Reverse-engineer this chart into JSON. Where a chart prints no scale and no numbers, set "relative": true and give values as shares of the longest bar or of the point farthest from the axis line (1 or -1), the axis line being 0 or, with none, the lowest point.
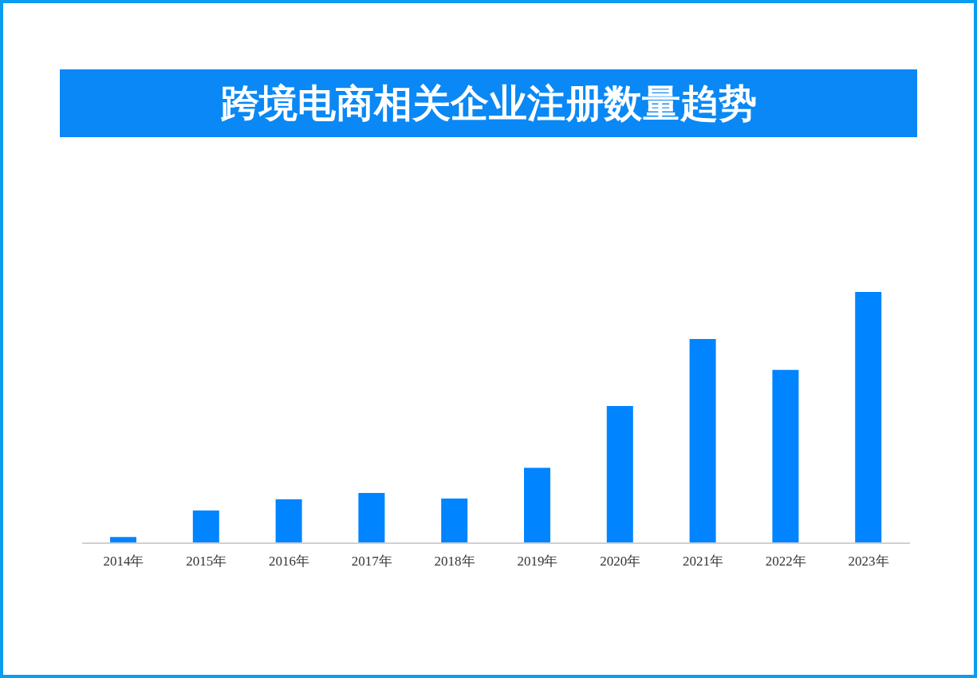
{
  "chart_data": {
    "type": "bar",
    "title": "跨境电商相关企业注册数量趋势",
    "categories": [
      "2014年",
      "2015年",
      "2016年",
      "2017年",
      "2018年",
      "2019年",
      "2020年",
      "2021年",
      "2022年",
      "2023年"
    ],
    "values": [
      0.025,
      0.13,
      0.175,
      0.2,
      0.178,
      0.3,
      0.546,
      0.813,
      0.69,
      1
    ],
    "color": "#0084ff",
    "relative": true
  }
}
